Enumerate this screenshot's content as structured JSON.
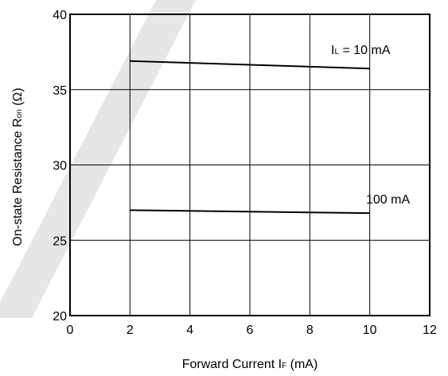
{
  "chart_data": {
    "type": "line",
    "xlabel": {
      "main": "Forward Current  I",
      "sub": "F",
      "suffix": " (mA)"
    },
    "ylabel": {
      "main": "On-state Resistance  R",
      "sub": "on",
      "suffix": " (Ω)"
    },
    "xlim": [
      0,
      12
    ],
    "ylim": [
      20,
      40
    ],
    "xticks": [
      "0",
      "2",
      "4",
      "6",
      "8",
      "10",
      "12"
    ],
    "yticks": [
      "20",
      "25",
      "30",
      "35",
      "40"
    ],
    "grid": true,
    "series": [
      {
        "label": {
          "main": "I",
          "sub": "L",
          "suffix": " = 10 mA"
        },
        "x": [
          2,
          10
        ],
        "y": [
          36.9,
          36.4
        ]
      },
      {
        "label": {
          "main": "",
          "sub": "",
          "suffix": "100 mA"
        },
        "x": [
          2,
          10
        ],
        "y": [
          27.0,
          26.8
        ]
      }
    ]
  }
}
